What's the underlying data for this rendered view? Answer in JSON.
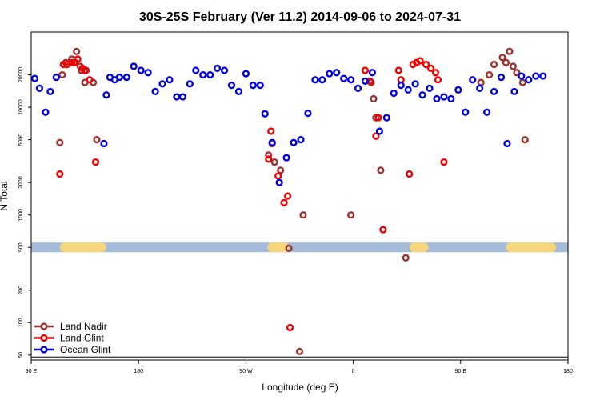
{
  "chart_data": {
    "type": "scatter",
    "title": "30S-25S February (Ver 11.2)   2014-09-06 to 2024-07-31",
    "xlabel": "Longitude (deg E)",
    "ylabel": "N Total",
    "x_axis": {
      "ticks": [
        90,
        180,
        270,
        360,
        450,
        540
      ],
      "tick_labels": [
        "90 E",
        "180",
        "90 W",
        "0",
        "90 E",
        "180"
      ],
      "range": [
        90,
        540
      ]
    },
    "y_axis": {
      "scale": "log",
      "ticks": [
        50,
        100,
        200,
        500,
        1000,
        2000,
        5000,
        10000,
        20000
      ],
      "tick_labels": [
        "50",
        "100",
        "200",
        "500",
        "1000",
        "2000",
        "5000",
        "10000",
        "20000"
      ],
      "range": [
        45,
        50000
      ]
    },
    "land_band": {
      "y": 500,
      "base_color": "#a3bbd9",
      "land_color": "#f5d67a",
      "land_segments": [
        [
          114,
          153
        ],
        [
          288,
          306
        ],
        [
          407,
          423
        ],
        [
          488,
          530
        ]
      ]
    },
    "series": [
      {
        "name": "Land Nadir",
        "color": "#a0302f",
        "points": [
          [
            114,
            4700
          ],
          [
            116,
            20000
          ],
          [
            119,
            26000
          ],
          [
            124,
            28000
          ],
          [
            127,
            26000
          ],
          [
            128,
            33000
          ],
          [
            131,
            24000
          ],
          [
            132,
            22000
          ],
          [
            135,
            17000
          ],
          [
            136,
            22000
          ],
          [
            142,
            17000
          ],
          [
            145,
            5000
          ],
          [
            289,
            3600
          ],
          [
            292,
            4600
          ],
          [
            294,
            3100
          ],
          [
            299,
            2600
          ],
          [
            306,
            490
          ],
          [
            318,
            1000
          ],
          [
            358,
            1000
          ],
          [
            375,
            17000
          ],
          [
            377,
            12000
          ],
          [
            379,
            8000
          ],
          [
            383,
            2600
          ],
          [
            404,
            400
          ],
          [
            467,
            17000
          ],
          [
            474,
            20000
          ],
          [
            478,
            25000
          ],
          [
            485,
            29000
          ],
          [
            488,
            26000
          ],
          [
            491,
            33000
          ],
          [
            494,
            24000
          ],
          [
            497,
            21000
          ],
          [
            502,
            17000
          ],
          [
            504,
            5000
          ],
          [
            315,
            54
          ]
        ]
      },
      {
        "name": "Land Glint",
        "color": "#ee0000",
        "points": [
          [
            114,
            2400
          ],
          [
            117,
            25000
          ],
          [
            120,
            25000
          ],
          [
            124,
            26000
          ],
          [
            126,
            26000
          ],
          [
            129,
            28000
          ],
          [
            133,
            23000
          ],
          [
            135,
            22000
          ],
          [
            139,
            18000
          ],
          [
            144,
            3100
          ],
          [
            289,
            3300
          ],
          [
            291,
            6000
          ],
          [
            297,
            2300
          ],
          [
            302,
            1300
          ],
          [
            305,
            1500
          ],
          [
            370,
            22000
          ],
          [
            374,
            17500
          ],
          [
            379,
            5400
          ],
          [
            381,
            8000
          ],
          [
            385,
            730
          ],
          [
            398,
            22000
          ],
          [
            400,
            18000
          ],
          [
            407,
            2400
          ],
          [
            410,
            25000
          ],
          [
            413,
            26000
          ],
          [
            416,
            27000
          ],
          [
            421,
            25000
          ],
          [
            425,
            23000
          ],
          [
            429,
            21000
          ],
          [
            431,
            18000
          ],
          [
            436,
            3100
          ],
          [
            307,
            90
          ]
        ]
      },
      {
        "name": "Ocean Glint",
        "color": "#0000dd",
        "points": [
          [
            93,
            18500
          ],
          [
            97,
            15000
          ],
          [
            102,
            9000
          ],
          [
            106,
            14000
          ],
          [
            111,
            19000
          ],
          [
            151,
            4600
          ],
          [
            153,
            13000
          ],
          [
            156,
            19000
          ],
          [
            160,
            18000
          ],
          [
            164,
            19000
          ],
          [
            170,
            19000
          ],
          [
            176,
            24000
          ],
          [
            182,
            22000
          ],
          [
            188,
            21000
          ],
          [
            194,
            14000
          ],
          [
            200,
            16500
          ],
          [
            206,
            18000
          ],
          [
            212,
            12500
          ],
          [
            217,
            12500
          ],
          [
            223,
            16500
          ],
          [
            228,
            22000
          ],
          [
            234,
            20000
          ],
          [
            240,
            20000
          ],
          [
            246,
            23000
          ],
          [
            252,
            22000
          ],
          [
            258,
            16000
          ],
          [
            264,
            14000
          ],
          [
            270,
            20500
          ],
          [
            276,
            16000
          ],
          [
            282,
            16000
          ],
          [
            286,
            8700
          ],
          [
            292,
            4700
          ],
          [
            298,
            2000
          ],
          [
            304,
            3400
          ],
          [
            310,
            4700
          ],
          [
            316,
            5000
          ],
          [
            322,
            8800
          ],
          [
            328,
            18000
          ],
          [
            334,
            18000
          ],
          [
            340,
            20500
          ],
          [
            346,
            21000
          ],
          [
            352,
            18500
          ],
          [
            358,
            18000
          ],
          [
            364,
            15000
          ],
          [
            370,
            17500
          ],
          [
            376,
            21000
          ],
          [
            382,
            6000
          ],
          [
            388,
            8000
          ],
          [
            394,
            13500
          ],
          [
            400,
            16000
          ],
          [
            406,
            14500
          ],
          [
            412,
            16500
          ],
          [
            418,
            13000
          ],
          [
            424,
            15000
          ],
          [
            430,
            12000
          ],
          [
            436,
            12500
          ],
          [
            442,
            12000
          ],
          [
            448,
            14500
          ],
          [
            454,
            9000
          ],
          [
            460,
            18000
          ],
          [
            466,
            15000
          ],
          [
            472,
            9000
          ],
          [
            478,
            14000
          ],
          [
            484,
            19000
          ],
          [
            489,
            4600
          ],
          [
            495,
            14000
          ],
          [
            501,
            19500
          ],
          [
            507,
            18000
          ],
          [
            513,
            19500
          ],
          [
            519,
            19500
          ]
        ]
      }
    ],
    "legend": {
      "position": "bottom-left",
      "entries": [
        "Land Nadir",
        "Land Glint",
        "Ocean Glint"
      ]
    }
  }
}
